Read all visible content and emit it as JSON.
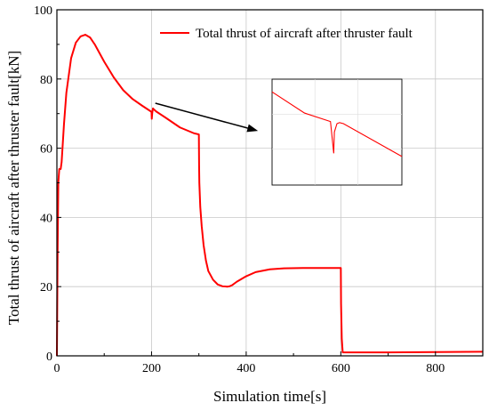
{
  "chart_data": {
    "type": "line",
    "title": "",
    "xlabel": "Simulation time[s]",
    "ylabel": "Total thrust of aircraft after thruster fault[kN]",
    "xlim": [
      0,
      900
    ],
    "ylim": [
      0,
      100
    ],
    "xticks": [
      0,
      200,
      400,
      600,
      800
    ],
    "yticks": [
      0,
      20,
      40,
      60,
      80,
      100
    ],
    "grid": true,
    "legend_position": "top-right",
    "series": [
      {
        "name": "Total thrust of aircraft after thruster fault",
        "color": "#ff0000",
        "x": [
          0,
          0.5,
          1.5,
          3,
          5,
          8,
          10,
          15,
          20,
          30,
          40,
          50,
          60,
          70,
          80,
          90,
          100,
          120,
          140,
          160,
          180,
          200,
          200.5,
          201.5,
          203,
          205,
          210,
          230,
          260,
          290,
          300,
          300.5,
          301,
          303,
          306,
          310,
          315,
          320,
          330,
          340,
          350,
          360,
          365,
          370,
          380,
          400,
          420,
          450,
          480,
          520,
          560,
          600,
          600.5,
          602,
          604,
          610,
          700,
          800,
          900
        ],
        "y": [
          0,
          10,
          30,
          50,
          54,
          54,
          56,
          67,
          76,
          86,
          90.5,
          92.3,
          92.8,
          92,
          90,
          87.5,
          85,
          80.5,
          76.8,
          74.2,
          72.3,
          70.5,
          68.5,
          70.2,
          71.5,
          71.2,
          70.6,
          68.8,
          66,
          64.3,
          64,
          55,
          50,
          43,
          37.5,
          32,
          27.5,
          24.5,
          22,
          20.6,
          20.1,
          20,
          20.1,
          20.4,
          21.4,
          23,
          24.2,
          25,
          25.3,
          25.4,
          25.4,
          25.4,
          15,
          5,
          1,
          1,
          1,
          1.1,
          1.2
        ]
      }
    ],
    "annotations": [
      {
        "type": "arrow",
        "from": [
          208,
          73
        ],
        "to": [
          425,
          65
        ]
      },
      {
        "type": "inset",
        "description": "zoom of the dip near 200 s",
        "x": [
          0,
          0.25,
          0.45,
          0.475,
          0.48,
          0.5,
          0.52,
          0.55,
          1
        ],
        "y": [
          0.88,
          0.68,
          0.6,
          0.3,
          0.5,
          0.58,
          0.59,
          0.58,
          0.27
        ]
      }
    ]
  }
}
